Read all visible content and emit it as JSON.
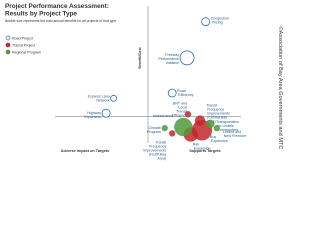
{
  "chart_data": {
    "type": "scatter",
    "title": [
      "Project Performance Assessment:",
      "Results by Project Type"
    ],
    "subtitle": "Bubble size represents the total annual benefits for all projects of that type",
    "y_label": "Benefit/Cost",
    "x_label_left": "Adverse Impact on Targets",
    "x_label_right": "Supports Targets",
    "credit": "©Association of Bay Area Governments and MTC",
    "xlim": [
      -1,
      1
    ],
    "ylim": [
      -0.25,
      1
    ],
    "series": [
      {
        "name": "Road Project",
        "color": "#2f6db5",
        "labels": [
          "Congestion Pricing",
          "Freeway Performance Initiative",
          "Road Efficiency",
          "Express Lane Network",
          "Highway Expansion"
        ],
        "x": [
          0.62,
          0.42,
          0.26,
          -0.37,
          -0.45
        ],
        "values": [
          0.89,
          0.55,
          0.22,
          0.17,
          0.03
        ],
        "size": [
          4,
          7,
          4,
          3,
          4
        ]
      },
      {
        "name": "Transit Project",
        "color": "#c1272d",
        "labels": [
          "BRT and Local Transit Efficiency",
          "Transit Frequency Improvements (Central Bay Area)",
          "Bus Expansion",
          "Rail Expansion",
          "Transit Frequency Improvements (North Bay Area)"
        ],
        "x": [
          0.43,
          0.56,
          0.58,
          0.46,
          0.26
        ],
        "values": [
          0.02,
          -0.04,
          -0.13,
          -0.17,
          -0.16
        ],
        "size": [
          3,
          5,
          10,
          7,
          3
        ]
      },
      {
        "name": "Regional Program",
        "color": "#4f9a3c",
        "labels": [
          "Climate Program",
          "Maintenance",
          "Transportation for Livable Communities",
          "Lifeline and New Freedom"
        ],
        "x": [
          0.18,
          0.38,
          0.67,
          0.74
        ],
        "values": [
          -0.11,
          -0.1,
          -0.07,
          -0.11
        ],
        "size": [
          3,
          9,
          4,
          3
        ]
      }
    ]
  }
}
